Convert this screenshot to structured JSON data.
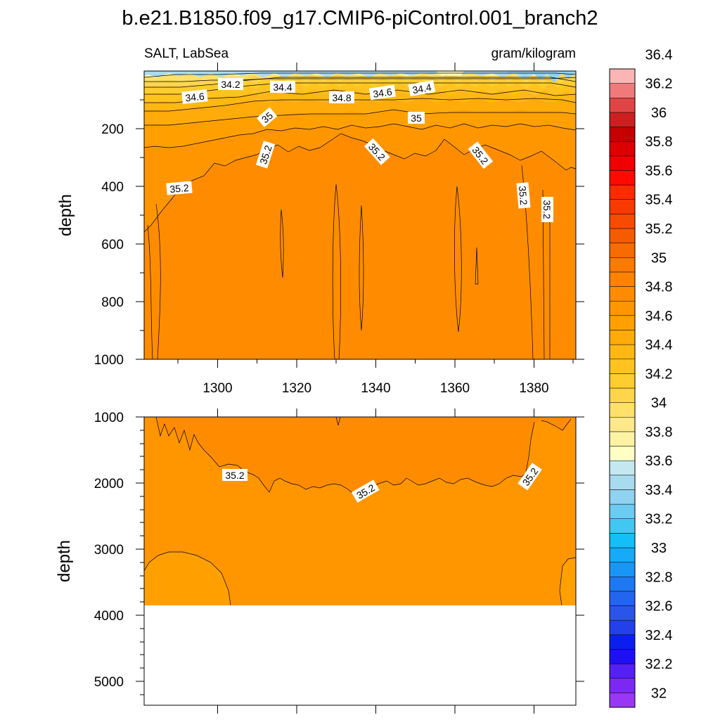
{
  "figure": {
    "title": "b.e21.B1850.f09_g17.CMIP6-piControl.001_branch2",
    "left_string": "SALT, LabSea",
    "right_string": "gram/kilogram"
  },
  "chart_data": [
    {
      "type": "heatmap",
      "panel": "upper",
      "variable": "SALT",
      "region": "LabSea",
      "units": "gram/kilogram",
      "xlabel": "",
      "ylabel": "depth",
      "xlim": [
        1282,
        1391
      ],
      "ylim": [
        0,
        1000
      ],
      "y_reversed": true,
      "x_ticks": [
        1300,
        1320,
        1340,
        1360,
        1380
      ],
      "y_ticks": [
        200,
        400,
        600,
        800,
        1000
      ],
      "contour_labels": [
        {
          "value": "34.2",
          "x": 1301,
          "depth": 45
        },
        {
          "value": "34.4",
          "x": 1317,
          "depth": 58
        },
        {
          "value": "34.6",
          "x": 1293,
          "depth": 88
        },
        {
          "value": "34.8",
          "x": 1335,
          "depth": 93
        },
        {
          "value": "34.6",
          "x": 1344,
          "depth": 80
        },
        {
          "value": "34.4",
          "x": 1352,
          "depth": 63
        },
        {
          "value": "35",
          "x": 1295,
          "depth": 160
        },
        {
          "value": "35",
          "x": 1337,
          "depth": 157
        },
        {
          "value": "35.2",
          "x": 1306,
          "depth": 275
        },
        {
          "value": "35.2",
          "x": 1342,
          "depth": 280
        },
        {
          "value": "35.2",
          "x": 1370,
          "depth": 310
        },
        {
          "value": "35.2",
          "x": 1291,
          "depth": 410
        },
        {
          "value": "35.2",
          "x": 1378,
          "depth": 470
        },
        {
          "value": "35.2",
          "x": 1384,
          "depth": 510
        }
      ],
      "field_summary": "Fresher water (33.8-34.4) in top ~50 m, steep halocline to ~35.0 by 200 m, ~35.1-35.3 below 300 m"
    },
    {
      "type": "heatmap",
      "panel": "lower",
      "variable": "SALT",
      "region": "LabSea",
      "units": "gram/kilogram",
      "xlabel": "",
      "ylabel": "depth",
      "xlim": [
        1282,
        1391
      ],
      "ylim": [
        1000,
        5350
      ],
      "y_reversed": true,
      "x_ticks": [
        1300,
        1320,
        1340,
        1360,
        1380
      ],
      "y_ticks": [
        1000,
        2000,
        3000,
        4000,
        5000
      ],
      "data_bottom_depth": 3875,
      "contour_labels": [
        {
          "value": "35.2",
          "x": 1303,
          "depth": 1880
        },
        {
          "value": "35.2",
          "x": 1337,
          "depth": 2130
        },
        {
          "value": "35.2",
          "x": 1380,
          "depth": 1900
        }
      ],
      "field_summary": "Values ~35.2 above ~2000 m, ~35.0-35.2 below, pockets ~35.0 near 3000-3900 m at the edges; no data below ~3875 m"
    }
  ],
  "colorbar": {
    "labels": [
      "32",
      "32.2",
      "32.4",
      "32.6",
      "32.8",
      "33",
      "33.2",
      "33.4",
      "33.6",
      "33.8",
      "34",
      "34.2",
      "34.4",
      "34.6",
      "34.8",
      "35",
      "35.2",
      "35.4",
      "35.6",
      "35.8",
      "36",
      "36.2",
      "36.4"
    ],
    "colors": [
      "#9a37f4",
      "#7b29f2",
      "#5520f4",
      "#1e0ff5",
      "#0a1fef",
      "#2340ea",
      "#2a55e8",
      "#2266ef",
      "#1e78f2",
      "#1996f5",
      "#16aaf8",
      "#14bff7",
      "#42c7f2",
      "#6bcbf2",
      "#8fd2f2",
      "#a9dbf0",
      "#c4e8f2",
      "#ffffc4",
      "#fff3a3",
      "#ffe88a",
      "#ffe06a",
      "#ffd54c",
      "#ffcd2e",
      "#ffc220",
      "#ffb713",
      "#ffab0a",
      "#ffa000",
      "#ff9600",
      "#ff8c00",
      "#ff8300",
      "#fb7a00",
      "#f66c00",
      "#f55c00",
      "#f64b00",
      "#f83a00",
      "#ff2a00",
      "#ff0a00",
      "#f00000",
      "#dc0000",
      "#c50000",
      "#cc2020",
      "#e04545",
      "#ef7a7a",
      "#fbb5b5"
    ]
  }
}
